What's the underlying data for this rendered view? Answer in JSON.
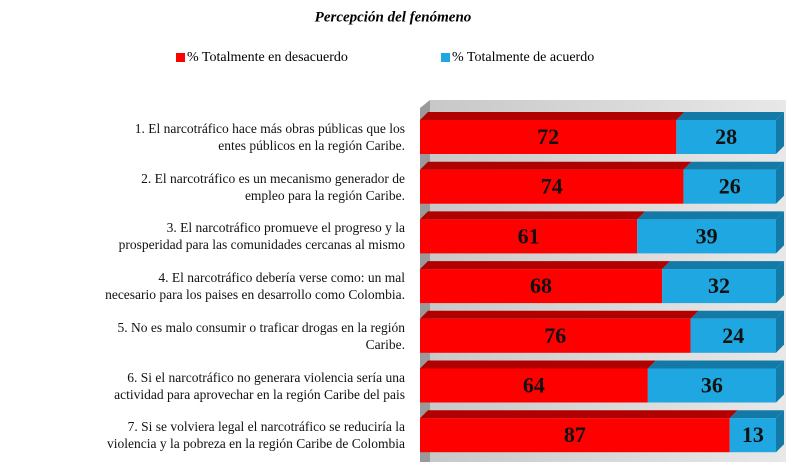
{
  "chart_data": {
    "type": "bar",
    "orientation": "horizontal",
    "stacked": true,
    "title": "Percepción del fenómeno",
    "categories": [
      "1. El narcotráfico hace más obras públicas que los\nentes públicos en la región Caribe.",
      "2. El narcotráfico es un mecanismo generador de\nempleo para la región Caribe.",
      "3. El narcotráfico promueve el progreso y la\nprosperidad para las comunidades cercanas al mismo",
      "4. El narcotráfico debería verse como: un mal\nnecesario para los paises en desarrollo como Colombia.",
      "5. No es malo consumir o traficar drogas en  la región\nCaribe.",
      "6. Si el narcotráfico no generara violencia sería una\nactividad para aprovechar en la región Caribe del pais",
      "7. Si se volviera legal el narcotráfico se reduciría la\nviolencia y la pobreza en la región Caribe de Colombia"
    ],
    "series": [
      {
        "name": "% Totalmente en desacuerdo",
        "color": "#ff0000",
        "values": [
          72,
          74,
          61,
          68,
          76,
          64,
          87
        ]
      },
      {
        "name": "% Totalmente de acuerdo",
        "color": "#1ea7e1",
        "values": [
          28,
          26,
          39,
          32,
          24,
          36,
          13
        ]
      }
    ],
    "xlim": [
      0,
      100
    ],
    "legend": "top"
  }
}
